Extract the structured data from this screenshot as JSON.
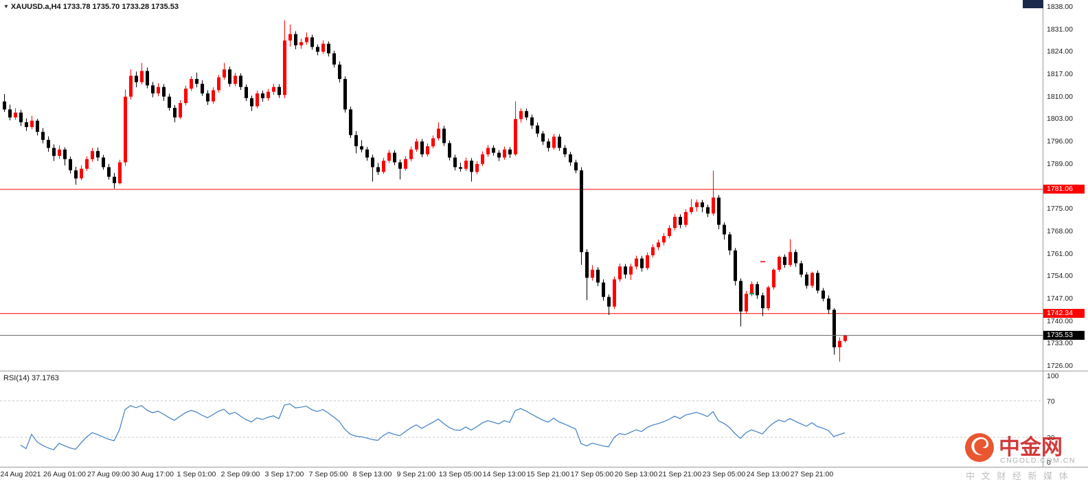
{
  "header": {
    "collapse_icon": "▼",
    "text": "XAUUSD.a,H4  1733.78 1735.70 1733.28 1735.53",
    "symbol": "XAUUSD.a",
    "timeframe": "H4",
    "open": "1733.78",
    "high": "1735.70",
    "low": "1733.28",
    "close": "1735.53"
  },
  "watermark": {
    "brand": "中金网",
    "domain": "CNGOLD.COM.CN",
    "tagline": "中 文 财 经 新 媒 体",
    "logo_color": "#e8481f",
    "brand_color": "#cf2a2a"
  },
  "chart_data": {
    "type": "candlestick",
    "title": "XAUUSD.a,H4",
    "symbol": "XAUUSD.a",
    "timeframe": "H4",
    "current_ohlc": {
      "open": 1733.78,
      "high": 1735.7,
      "low": 1733.28,
      "close": 1735.53
    },
    "candle_colors": {
      "bull": "#ff0000",
      "bear": "#000000"
    },
    "price_axis": {
      "min": 1726,
      "max": 1838,
      "tick_step": 7,
      "labels": [
        "1838.00",
        "1831.00",
        "1824.00",
        "1817.00",
        "1810.00",
        "1803.00",
        "1796.00",
        "1789.00",
        "1775.00",
        "1768.00",
        "1761.00",
        "1754.00",
        "1747.00",
        "1740.00",
        "1733.00",
        "1726.00"
      ]
    },
    "time_axis": {
      "labels": [
        "24 Aug 2021",
        "26 Aug 01:00",
        "27 Aug 09:00",
        "30 Aug 17:00",
        "1 Sep 01:00",
        "2 Sep 09:00",
        "3 Sep 17:00",
        "7 Sep 05:00",
        "8 Sep 13:00",
        "9 Sep 21:00",
        "13 Sep 05:00",
        "14 Sep 13:00",
        "15 Sep 21:00",
        "17 Sep 05:00",
        "20 Sep 13:00",
        "21 Sep 21:00",
        "23 Sep 05:00",
        "24 Sep 13:00",
        "27 Sep 21:00"
      ],
      "first_label_candle_index": 3,
      "label_every_n_candles": 8
    },
    "horizontal_lines": [
      {
        "price": 1781.06,
        "label": "1781.06",
        "line_color": "#ff0000",
        "badge_bg": "#ff0000",
        "badge_fg": "#ffffff"
      },
      {
        "price": 1742.34,
        "label": "1742.34",
        "line_color": "#ff0000",
        "badge_bg": "#ff0000",
        "badge_fg": "#ffffff"
      }
    ],
    "current_price_line": {
      "price": 1735.53,
      "label": "1735.53",
      "line_color": "#6e6e6e",
      "badge_bg": "#000000",
      "badge_fg": "#ffffff"
    },
    "trade_markers": [
      {
        "candle_index": 136,
        "price": 1748.5,
        "color": "#00a651",
        "name": "buy-marker"
      },
      {
        "candle_index": 138,
        "price": 1758.5,
        "color": "#ff2d2d",
        "name": "sell-marker"
      }
    ],
    "indicator": {
      "name": "RSI",
      "period": 14,
      "display_label": "RSI(14) 37.1763",
      "value": 37.1763,
      "line_color": "#3d7dc4",
      "range": [
        0,
        100
      ],
      "levels": [
        100,
        70,
        30,
        0
      ],
      "level_lines": [
        70,
        30
      ]
    },
    "candles_ohlc": [
      [
        1808.5,
        1810.8,
        1805.2,
        1806.0
      ],
      [
        1806.0,
        1807.5,
        1802.6,
        1803.5
      ],
      [
        1803.5,
        1806.4,
        1802.8,
        1805.0
      ],
      [
        1805.0,
        1805.9,
        1800.8,
        1802.0
      ],
      [
        1802.0,
        1803.2,
        1799.3,
        1800.5
      ],
      [
        1800.5,
        1804.0,
        1799.8,
        1802.5
      ],
      [
        1802.5,
        1803.1,
        1797.9,
        1799.0
      ],
      [
        1799.0,
        1800.2,
        1795.4,
        1796.5
      ],
      [
        1796.5,
        1797.6,
        1792.8,
        1794.0
      ],
      [
        1794.0,
        1795.1,
        1789.9,
        1791.5
      ],
      [
        1791.5,
        1794.8,
        1790.6,
        1793.5
      ],
      [
        1793.5,
        1794.2,
        1788.5,
        1790.5
      ],
      [
        1790.5,
        1791.3,
        1786.0,
        1787.0
      ],
      [
        1787.0,
        1788.1,
        1782.5,
        1784.5
      ],
      [
        1784.5,
        1788.6,
        1783.9,
        1787.5
      ],
      [
        1787.5,
        1791.4,
        1786.8,
        1790.5
      ],
      [
        1790.5,
        1794.0,
        1789.7,
        1793.0
      ],
      [
        1793.0,
        1794.1,
        1789.9,
        1791.0
      ],
      [
        1791.0,
        1791.8,
        1787.2,
        1788.0
      ],
      [
        1788.0,
        1789.0,
        1784.1,
        1785.0
      ],
      [
        1785.0,
        1786.2,
        1781.3,
        1783.0
      ],
      [
        1783.0,
        1790.3,
        1782.6,
        1789.5
      ],
      [
        1789.5,
        1812.2,
        1788.4,
        1810.0
      ],
      [
        1810.0,
        1818.5,
        1809.1,
        1816.5
      ],
      [
        1816.5,
        1817.8,
        1812.9,
        1814.5
      ],
      [
        1814.5,
        1820.5,
        1813.8,
        1818.0
      ],
      [
        1818.0,
        1819.1,
        1812.6,
        1813.5
      ],
      [
        1813.5,
        1814.6,
        1809.8,
        1811.0
      ],
      [
        1811.0,
        1814.2,
        1810.1,
        1813.0
      ],
      [
        1813.0,
        1813.9,
        1808.7,
        1810.0
      ],
      [
        1810.0,
        1810.9,
        1805.6,
        1806.5
      ],
      [
        1806.5,
        1807.4,
        1802.0,
        1803.5
      ],
      [
        1803.5,
        1808.9,
        1803.0,
        1808.0
      ],
      [
        1808.0,
        1813.4,
        1807.3,
        1812.5
      ],
      [
        1812.5,
        1816.4,
        1811.8,
        1815.5
      ],
      [
        1815.5,
        1817.5,
        1812.9,
        1814.0
      ],
      [
        1814.0,
        1815.1,
        1810.2,
        1811.0
      ],
      [
        1811.0,
        1812.0,
        1807.4,
        1808.5
      ],
      [
        1808.5,
        1812.9,
        1807.8,
        1812.0
      ],
      [
        1812.0,
        1816.8,
        1811.2,
        1816.0
      ],
      [
        1816.0,
        1820.5,
        1815.3,
        1818.5
      ],
      [
        1818.5,
        1819.4,
        1813.1,
        1814.0
      ],
      [
        1814.0,
        1817.4,
        1813.2,
        1816.5
      ],
      [
        1816.5,
        1817.3,
        1812.1,
        1813.0
      ],
      [
        1813.0,
        1813.8,
        1808.6,
        1809.5
      ],
      [
        1809.5,
        1810.3,
        1805.5,
        1807.0
      ],
      [
        1807.0,
        1811.9,
        1806.4,
        1811.0
      ],
      [
        1811.0,
        1811.9,
        1808.4,
        1809.5
      ],
      [
        1809.5,
        1812.4,
        1808.7,
        1811.5
      ],
      [
        1811.5,
        1814.0,
        1810.6,
        1813.0
      ],
      [
        1813.0,
        1813.9,
        1809.6,
        1810.5
      ],
      [
        1810.5,
        1833.8,
        1809.5,
        1827.5
      ],
      [
        1827.5,
        1832.5,
        1825.6,
        1829.5
      ],
      [
        1829.5,
        1830.4,
        1824.8,
        1826.0
      ],
      [
        1826.0,
        1828.1,
        1824.9,
        1827.0
      ],
      [
        1827.0,
        1830.0,
        1826.2,
        1828.5
      ],
      [
        1828.5,
        1829.3,
        1824.6,
        1825.5
      ],
      [
        1825.5,
        1826.3,
        1822.9,
        1824.0
      ],
      [
        1824.0,
        1827.6,
        1823.3,
        1826.5
      ],
      [
        1826.5,
        1827.2,
        1822.5,
        1823.5
      ],
      [
        1823.5,
        1824.3,
        1819.1,
        1820.0
      ],
      [
        1820.0,
        1821.0,
        1814.4,
        1815.5
      ],
      [
        1815.5,
        1816.3,
        1805.0,
        1806.0
      ],
      [
        1806.0,
        1806.9,
        1797.1,
        1798.0
      ],
      [
        1798.0,
        1799.2,
        1792.3,
        1794.5
      ],
      [
        1794.5,
        1796.4,
        1792.6,
        1793.5
      ],
      [
        1793.5,
        1794.3,
        1790.0,
        1791.0
      ],
      [
        1791.0,
        1791.9,
        1783.5,
        1788.0
      ],
      [
        1788.0,
        1789.3,
        1785.6,
        1786.5
      ],
      [
        1786.5,
        1790.9,
        1785.9,
        1790.0
      ],
      [
        1790.0,
        1793.4,
        1789.3,
        1792.5
      ],
      [
        1792.5,
        1793.3,
        1788.6,
        1789.5
      ],
      [
        1789.5,
        1790.4,
        1784.2,
        1787.5
      ],
      [
        1787.5,
        1791.4,
        1786.9,
        1790.5
      ],
      [
        1790.5,
        1794.4,
        1789.8,
        1793.5
      ],
      [
        1793.5,
        1796.9,
        1792.8,
        1796.0
      ],
      [
        1796.0,
        1796.8,
        1791.1,
        1792.0
      ],
      [
        1792.0,
        1795.4,
        1791.3,
        1794.5
      ],
      [
        1794.5,
        1797.9,
        1793.9,
        1797.0
      ],
      [
        1797.0,
        1802.0,
        1796.3,
        1800.0
      ],
      [
        1800.0,
        1800.9,
        1794.6,
        1795.5
      ],
      [
        1795.5,
        1796.3,
        1790.1,
        1791.0
      ],
      [
        1791.0,
        1791.9,
        1787.0,
        1788.0
      ],
      [
        1788.0,
        1789.4,
        1786.6,
        1787.5
      ],
      [
        1787.5,
        1791.0,
        1786.8,
        1790.0
      ],
      [
        1790.0,
        1790.8,
        1783.5,
        1786.5
      ],
      [
        1786.5,
        1789.9,
        1785.8,
        1789.0
      ],
      [
        1789.0,
        1792.9,
        1788.3,
        1792.0
      ],
      [
        1792.0,
        1794.9,
        1791.2,
        1794.0
      ],
      [
        1794.0,
        1794.8,
        1791.6,
        1792.5
      ],
      [
        1792.5,
        1793.3,
        1789.9,
        1791.0
      ],
      [
        1791.0,
        1794.4,
        1790.3,
        1793.5
      ],
      [
        1793.5,
        1794.3,
        1790.9,
        1792.0
      ],
      [
        1792.0,
        1808.5,
        1791.5,
        1803.0
      ],
      [
        1803.0,
        1806.4,
        1801.9,
        1805.5
      ],
      [
        1805.5,
        1806.3,
        1802.6,
        1803.5
      ],
      [
        1803.5,
        1804.4,
        1799.9,
        1801.0
      ],
      [
        1801.0,
        1801.9,
        1797.4,
        1798.5
      ],
      [
        1798.5,
        1799.3,
        1794.9,
        1796.0
      ],
      [
        1796.0,
        1796.9,
        1792.9,
        1794.0
      ],
      [
        1794.0,
        1798.4,
        1793.4,
        1797.5
      ],
      [
        1797.5,
        1798.3,
        1793.1,
        1794.0
      ],
      [
        1794.0,
        1794.9,
        1791.1,
        1792.0
      ],
      [
        1792.0,
        1792.8,
        1788.4,
        1789.5
      ],
      [
        1789.5,
        1790.3,
        1786.1,
        1787.0
      ],
      [
        1787.0,
        1788.0,
        1757.5,
        1761.5
      ],
      [
        1761.5,
        1762.4,
        1746.5,
        1753.5
      ],
      [
        1753.5,
        1757.4,
        1752.6,
        1756.0
      ],
      [
        1756.0,
        1756.8,
        1750.9,
        1752.0
      ],
      [
        1752.0,
        1753.0,
        1746.3,
        1747.5
      ],
      [
        1747.5,
        1748.3,
        1741.9,
        1744.5
      ],
      [
        1744.5,
        1753.9,
        1743.8,
        1753.0
      ],
      [
        1753.0,
        1757.9,
        1752.2,
        1757.0
      ],
      [
        1757.0,
        1757.8,
        1753.3,
        1754.5
      ],
      [
        1754.5,
        1757.9,
        1752.8,
        1757.0
      ],
      [
        1757.0,
        1760.4,
        1756.1,
        1759.5
      ],
      [
        1759.5,
        1760.3,
        1755.4,
        1756.5
      ],
      [
        1756.5,
        1761.4,
        1755.9,
        1760.5
      ],
      [
        1760.5,
        1763.9,
        1759.8,
        1763.0
      ],
      [
        1763.0,
        1765.4,
        1762.1,
        1764.5
      ],
      [
        1764.5,
        1767.4,
        1763.6,
        1766.5
      ],
      [
        1766.5,
        1769.9,
        1765.8,
        1769.0
      ],
      [
        1769.0,
        1773.4,
        1768.3,
        1772.5
      ],
      [
        1772.5,
        1773.3,
        1768.9,
        1770.0
      ],
      [
        1770.0,
        1774.9,
        1769.3,
        1774.0
      ],
      [
        1774.0,
        1778.0,
        1773.3,
        1775.5
      ],
      [
        1775.5,
        1777.9,
        1774.1,
        1777.0
      ],
      [
        1777.0,
        1777.8,
        1773.9,
        1775.5
      ],
      [
        1775.5,
        1776.3,
        1772.4,
        1773.5
      ],
      [
        1773.5,
        1786.9,
        1772.8,
        1778.5
      ],
      [
        1778.5,
        1779.3,
        1768.6,
        1770.0
      ],
      [
        1770.0,
        1770.8,
        1765.4,
        1767.0
      ],
      [
        1767.0,
        1767.8,
        1760.6,
        1762.0
      ],
      [
        1762.0,
        1762.8,
        1751.1,
        1752.5
      ],
      [
        1752.5,
        1753.3,
        1738.3,
        1743.0
      ],
      [
        1743.0,
        1749.4,
        1742.3,
        1748.5
      ],
      [
        1748.5,
        1752.4,
        1747.7,
        1751.5
      ],
      [
        1751.5,
        1752.3,
        1746.9,
        1748.0
      ],
      [
        1748.0,
        1748.8,
        1741.5,
        1744.0
      ],
      [
        1744.0,
        1751.0,
        1743.3,
        1750.5
      ],
      [
        1750.5,
        1756.4,
        1749.8,
        1756.0
      ],
      [
        1756.0,
        1760.4,
        1755.3,
        1760.0
      ],
      [
        1760.0,
        1760.8,
        1756.6,
        1757.5
      ],
      [
        1757.5,
        1765.5,
        1756.9,
        1761.5
      ],
      [
        1761.5,
        1762.3,
        1756.9,
        1758.0
      ],
      [
        1758.0,
        1758.8,
        1753.6,
        1754.5
      ],
      [
        1754.5,
        1755.3,
        1750.1,
        1751.0
      ],
      [
        1751.0,
        1755.4,
        1750.3,
        1755.0
      ],
      [
        1755.0,
        1755.8,
        1748.6,
        1749.5
      ],
      [
        1749.5,
        1750.3,
        1746.1,
        1747.0
      ],
      [
        1747.0,
        1748.0,
        1742.2,
        1743.5
      ],
      [
        1743.5,
        1744.0,
        1729.5,
        1731.8
      ],
      [
        1731.8,
        1734.9,
        1727.3,
        1733.8
      ],
      [
        1733.78,
        1735.7,
        1733.28,
        1735.53
      ]
    ]
  }
}
